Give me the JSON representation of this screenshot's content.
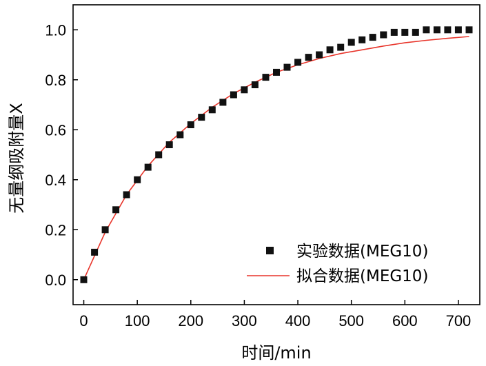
{
  "chart_data": {
    "type": "scatter",
    "title": "",
    "xlabel": "时间/min",
    "ylabel": "无量纲吸附量X",
    "xlim": [
      -20,
      740
    ],
    "ylim": [
      -0.1,
      1.1
    ],
    "xticks": [
      0,
      100,
      200,
      300,
      400,
      500,
      600,
      700
    ],
    "yticks": [
      0.0,
      0.2,
      0.4,
      0.6,
      0.8,
      1.0
    ],
    "xtick_labels": [
      "0",
      "100",
      "200",
      "300",
      "400",
      "500",
      "600",
      "700"
    ],
    "ytick_labels": [
      "0.0",
      "0.2",
      "0.4",
      "0.6",
      "0.8",
      "1.0"
    ],
    "grid": false,
    "legend_position": "bottom-right",
    "series": [
      {
        "name": "实验数据(MEG10)",
        "kind": "scatter",
        "marker": "square",
        "color": "#111111",
        "x": [
          0,
          20,
          40,
          60,
          80,
          100,
          120,
          140,
          160,
          180,
          200,
          220,
          240,
          260,
          280,
          300,
          320,
          340,
          360,
          380,
          400,
          420,
          440,
          460,
          480,
          500,
          520,
          540,
          560,
          580,
          600,
          620,
          640,
          660,
          680,
          700,
          720
        ],
        "y": [
          0.0,
          0.11,
          0.2,
          0.28,
          0.34,
          0.4,
          0.45,
          0.5,
          0.54,
          0.58,
          0.62,
          0.65,
          0.68,
          0.71,
          0.74,
          0.76,
          0.78,
          0.81,
          0.83,
          0.85,
          0.87,
          0.89,
          0.9,
          0.92,
          0.93,
          0.95,
          0.96,
          0.97,
          0.98,
          0.99,
          0.99,
          0.99,
          1.0,
          1.0,
          1.0,
          1.0,
          1.0
        ]
      },
      {
        "name": "拟合数据(MEG10)",
        "kind": "line",
        "color": "#e8342a",
        "x": [
          0,
          40,
          80,
          120,
          160,
          200,
          240,
          280,
          320,
          360,
          400,
          440,
          480,
          520,
          560,
          600,
          640,
          680,
          720
        ],
        "y": [
          0.0,
          0.19,
          0.34,
          0.455,
          0.55,
          0.625,
          0.69,
          0.745,
          0.79,
          0.83,
          0.86,
          0.885,
          0.905,
          0.92,
          0.935,
          0.948,
          0.958,
          0.966,
          0.973
        ]
      }
    ]
  }
}
